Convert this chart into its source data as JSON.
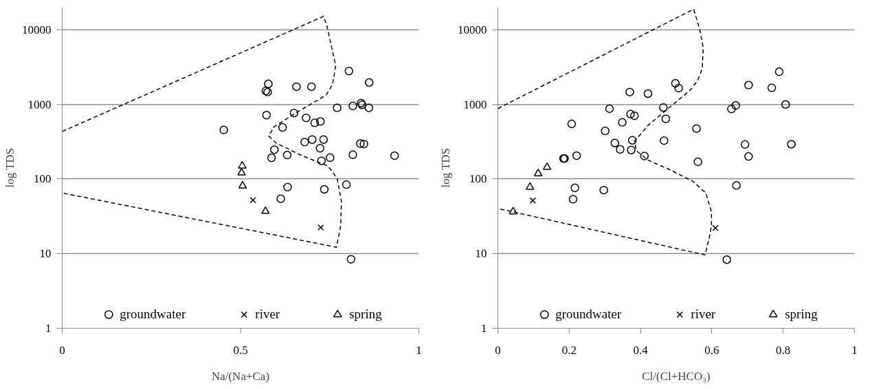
{
  "chart_data": [
    {
      "type": "scatter",
      "xlabel": "Na/(Na+Ca)",
      "ylabel": "log TDS",
      "xlim": [
        0,
        1
      ],
      "ylim": [
        1,
        20000
      ],
      "xticks": [
        0,
        0.5,
        1
      ],
      "yticks": [
        1,
        10,
        100,
        1000,
        10000
      ],
      "log": "y",
      "grid": "y",
      "legend": "bottom",
      "series": [
        {
          "name": "groundwater",
          "color": "#000000",
          "marker": "circle",
          "x": [
            0.804,
            0.861,
            0.578,
            0.571,
            0.576,
            0.657,
            0.699,
            0.771,
            0.815,
            0.838,
            0.841,
            0.86,
            0.573,
            0.65,
            0.684,
            0.708,
            0.724,
            0.453,
            0.618,
            0.68,
            0.701,
            0.733,
            0.723,
            0.595,
            0.587,
            0.631,
            0.727,
            0.751,
            0.815,
            0.836,
            0.846,
            0.932,
            0.632,
            0.613,
            0.735,
            0.797,
            0.81
          ],
          "values": [
            2790,
            1960,
            1880,
            1510,
            1460,
            1720,
            1720,
            897,
            951,
            1040,
            986,
            897,
            717,
            766,
            658,
            565,
            590,
            454,
            489,
            312,
            337,
            337,
            258,
            247,
            192,
            209,
            175,
            193,
            211,
            298,
            294,
            205,
            77.6,
            54.4,
            72.6,
            84.1,
            8.4
          ]
        },
        {
          "name": "river",
          "color": "#000000",
          "marker": "cross",
          "x": [
            0.535,
            0.725
          ],
          "values": [
            52,
            22.4
          ]
        },
        {
          "name": "spring",
          "color": "#000000",
          "marker": "triangle",
          "x": [
            0.505,
            0.503,
            0.506,
            0.57
          ],
          "values": [
            150,
            121,
            81,
            37
          ]
        },
        {
          "type": "line",
          "color": "#000000",
          "line_style": "dashed",
          "marker": "none",
          "x": [
            0,
            0.733,
            0.742,
            0.767,
            0.758,
            0.74,
            0.656,
            0.594,
            0.579,
            0.6,
            0.669,
            0.746,
            0.771,
            0.783,
            0.781,
            0.769,
            0
          ],
          "values": [
            433,
            15100,
            11400,
            3300,
            1840,
            1330,
            771,
            499,
            376,
            303,
            209,
            148,
            102,
            50,
            23.8,
            12.2,
            65
          ]
        }
      ]
    },
    {
      "type": "scatter",
      "xlabel": "Cl/(Cl+HCO₃)",
      "ylabel": "log TDS",
      "xlim": [
        0,
        1
      ],
      "ylim": [
        1,
        20000
      ],
      "xticks": [
        0,
        0.2,
        0.4,
        0.6,
        0.8,
        1
      ],
      "yticks": [
        1,
        10,
        100,
        1000,
        10000
      ],
      "log": "y",
      "grid": "y",
      "legend": "bottom",
      "series": [
        {
          "name": "groundwater",
          "color": "#000000",
          "marker": "circle",
          "x": [
            0.37,
            0.313,
            0.372,
            0.383,
            0.349,
            0.207,
            0.301,
            0.377,
            0.328,
            0.343,
            0.374,
            0.187,
            0.184,
            0.221,
            0.216,
            0.211,
            0.297,
            0.789,
            0.703,
            0.768,
            0.498,
            0.507,
            0.421,
            0.464,
            0.807,
            0.667,
            0.655,
            0.471,
            0.557,
            0.466,
            0.411,
            0.561,
            0.693,
            0.823,
            0.703,
            0.669,
            0.642
          ],
          "values": [
            1460,
            875,
            740,
            704,
            574,
            547,
            440,
            330,
            303,
            249,
            244,
            188,
            188,
            205,
            76.1,
            53.5,
            70.8,
            2730,
            1810,
            1660,
            1910,
            1650,
            1390,
            906,
            996,
            966,
            867,
            640,
            473,
            327,
            203,
            170,
            290,
            292,
            200,
            81.8,
            8.3
          ]
        },
        {
          "name": "river",
          "color": "#000000",
          "marker": "cross",
          "x": [
            0.098,
            0.61
          ],
          "values": [
            51.5,
            22
          ]
        },
        {
          "name": "spring",
          "color": "#000000",
          "marker": "triangle",
          "x": [
            0.043,
            0.09,
            0.113,
            0.138
          ],
          "values": [
            36.5,
            77.8,
            118,
            144
          ]
        },
        {
          "type": "line",
          "color": "#000000",
          "line_style": "dashed",
          "marker": "none",
          "x": [
            0,
            0.549,
            0.566,
            0.576,
            0.573,
            0.56,
            0.54,
            0.481,
            0.422,
            0.383,
            0.389,
            0.422,
            0.481,
            0.547,
            0.583,
            0.599,
            0.599,
            0.593,
            0.581,
            0
          ],
          "values": [
            878,
            18800,
            10200,
            5700,
            2980,
            2080,
            1560,
            906,
            527,
            318,
            238,
            178,
            134,
            93,
            65,
            36.5,
            23.6,
            16.5,
            9.6,
            40.3
          ]
        }
      ]
    }
  ]
}
